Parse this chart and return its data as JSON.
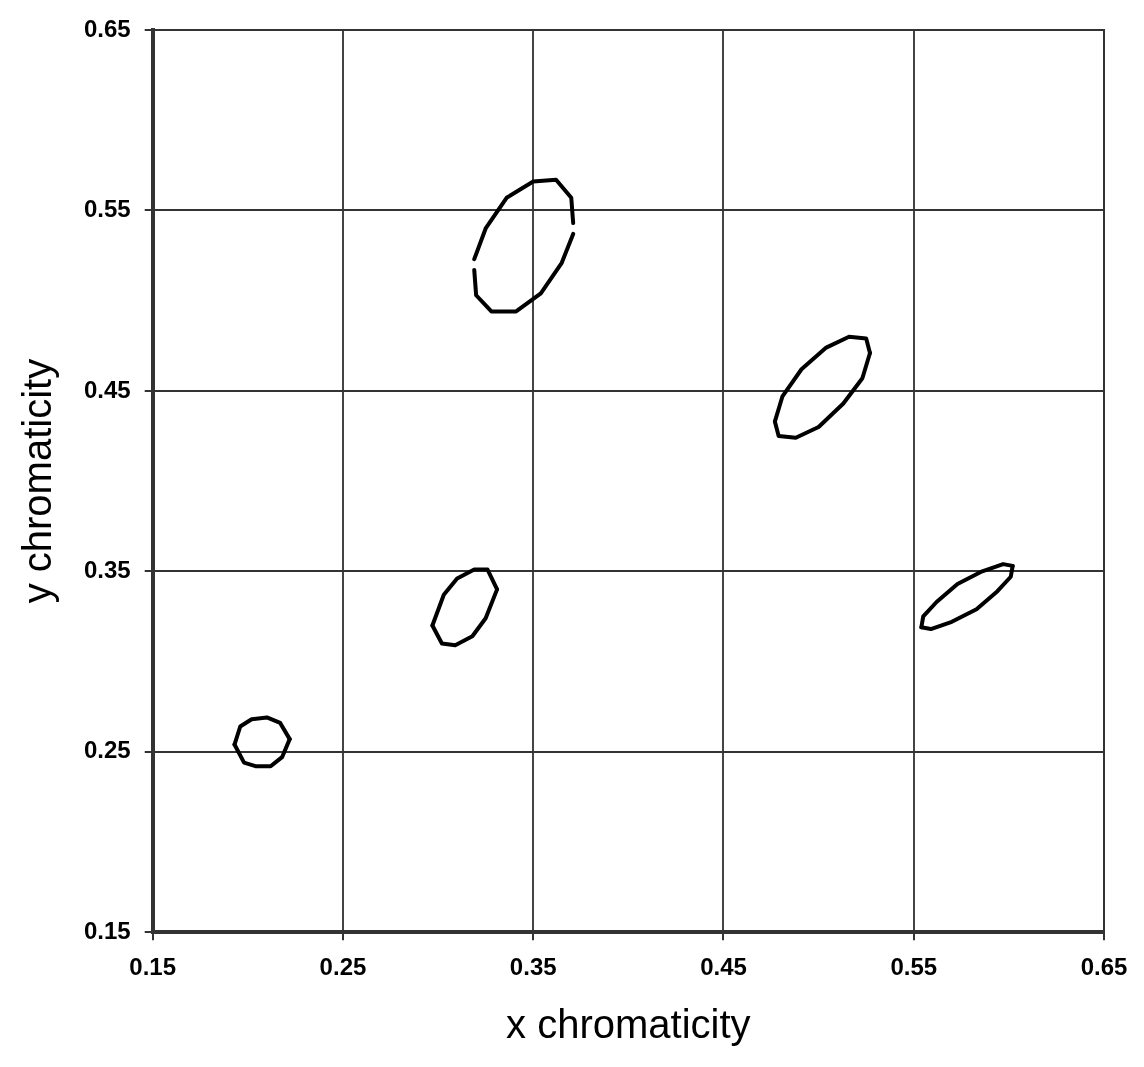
{
  "chart_data": {
    "type": "line",
    "xlabel": "x chromaticity",
    "ylabel": "y chromaticity",
    "xlim": [
      0.15,
      0.65
    ],
    "ylim": [
      0.15,
      0.65
    ],
    "xticks": [
      0.15,
      0.25,
      0.35,
      0.45,
      0.55,
      0.65
    ],
    "yticks": [
      0.15,
      0.25,
      0.35,
      0.45,
      0.55,
      0.65
    ],
    "grid": true,
    "marker": "none",
    "line_style": "solid",
    "series": [
      {
        "color": "#000000",
        "x": [
          0.193,
          0.196,
          0.202,
          0.21,
          0.217,
          0.222
        ],
        "values": [
          0.254,
          0.264,
          0.268,
          0.269,
          0.266,
          0.257
        ]
      },
      {
        "color": "#000000",
        "x": [
          0.193,
          0.198,
          0.204,
          0.212,
          0.218,
          0.222
        ],
        "values": [
          0.254,
          0.244,
          0.242,
          0.242,
          0.247,
          0.257
        ]
      },
      {
        "color": "#000000",
        "x": [
          0.297,
          0.303,
          0.31,
          0.319,
          0.326,
          0.331
        ],
        "values": [
          0.32,
          0.337,
          0.346,
          0.351,
          0.351,
          0.34
        ]
      },
      {
        "color": "#000000",
        "x": [
          0.297,
          0.302,
          0.309,
          0.318,
          0.325,
          0.331
        ],
        "values": [
          0.32,
          0.31,
          0.309,
          0.314,
          0.324,
          0.34
        ]
      },
      {
        "color": "#000000",
        "x": [
          0.319,
          0.325,
          0.336,
          0.35,
          0.362,
          0.37,
          0.371
        ],
        "values": [
          0.523,
          0.54,
          0.557,
          0.566,
          0.567,
          0.557,
          0.543
        ]
      },
      {
        "color": "#000000",
        "x": [
          0.319,
          0.32,
          0.328,
          0.341,
          0.354,
          0.365,
          0.371
        ],
        "values": [
          0.517,
          0.503,
          0.494,
          0.494,
          0.504,
          0.521,
          0.537
        ]
      },
      {
        "color": "#000000",
        "x": [
          0.477,
          0.481,
          0.491,
          0.504,
          0.516,
          0.525,
          0.527
        ],
        "values": [
          0.433,
          0.447,
          0.462,
          0.474,
          0.48,
          0.479,
          0.471
        ]
      },
      {
        "color": "#000000",
        "x": [
          0.477,
          0.479,
          0.488,
          0.5,
          0.513,
          0.523,
          0.527
        ],
        "values": [
          0.433,
          0.425,
          0.424,
          0.43,
          0.443,
          0.457,
          0.471
        ]
      },
      {
        "color": "#000000",
        "x": [
          0.554,
          0.555,
          0.562,
          0.573,
          0.586,
          0.597,
          0.602
        ],
        "values": [
          0.319,
          0.325,
          0.333,
          0.343,
          0.35,
          0.354,
          0.353
        ]
      },
      {
        "color": "#000000",
        "x": [
          0.554,
          0.559,
          0.57,
          0.583,
          0.594,
          0.601,
          0.602
        ],
        "values": [
          0.319,
          0.318,
          0.322,
          0.329,
          0.339,
          0.347,
          0.353
        ]
      }
    ]
  }
}
